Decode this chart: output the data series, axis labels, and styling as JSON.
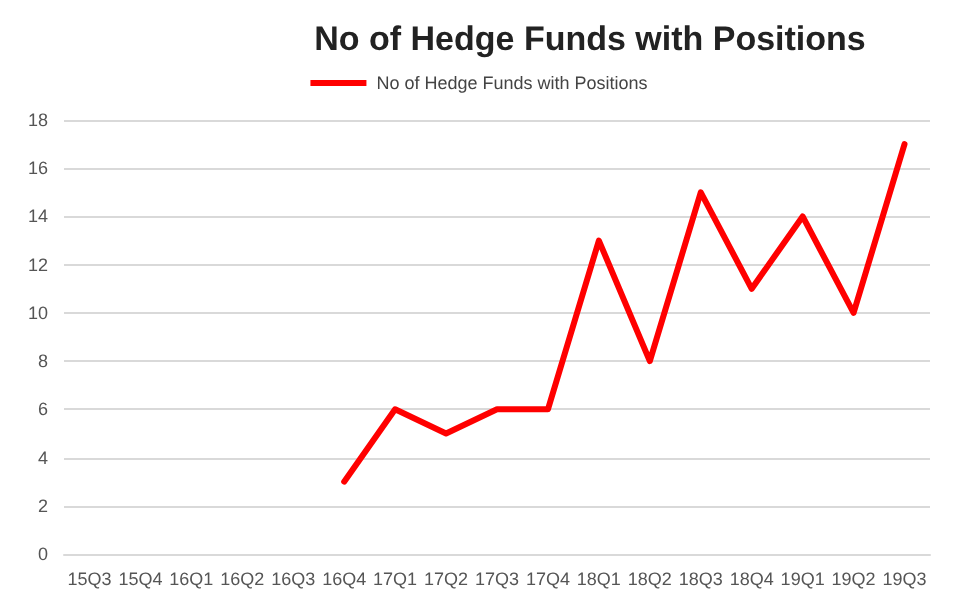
{
  "chart_data": {
    "type": "line",
    "title": "No of Hedge Funds with Positions",
    "categories": [
      "15Q3",
      "15Q4",
      "16Q1",
      "16Q2",
      "16Q3",
      "16Q4",
      "17Q1",
      "17Q2",
      "17Q3",
      "17Q4",
      "18Q1",
      "18Q2",
      "18Q3",
      "18Q4",
      "19Q1",
      "19Q2",
      "19Q3"
    ],
    "series": [
      {
        "name": "No of Hedge Funds with Positions",
        "color": "#ff0000",
        "values": [
          null,
          null,
          null,
          null,
          null,
          3,
          6,
          5,
          6,
          6,
          13,
          8,
          15,
          11,
          14,
          10,
          17
        ]
      }
    ],
    "ylim": [
      0,
      18
    ],
    "yticks": [
      0,
      2,
      4,
      6,
      8,
      10,
      12,
      14,
      16,
      18
    ],
    "grid": "y",
    "legend": "top",
    "marker": "none",
    "line_style": "solid"
  }
}
